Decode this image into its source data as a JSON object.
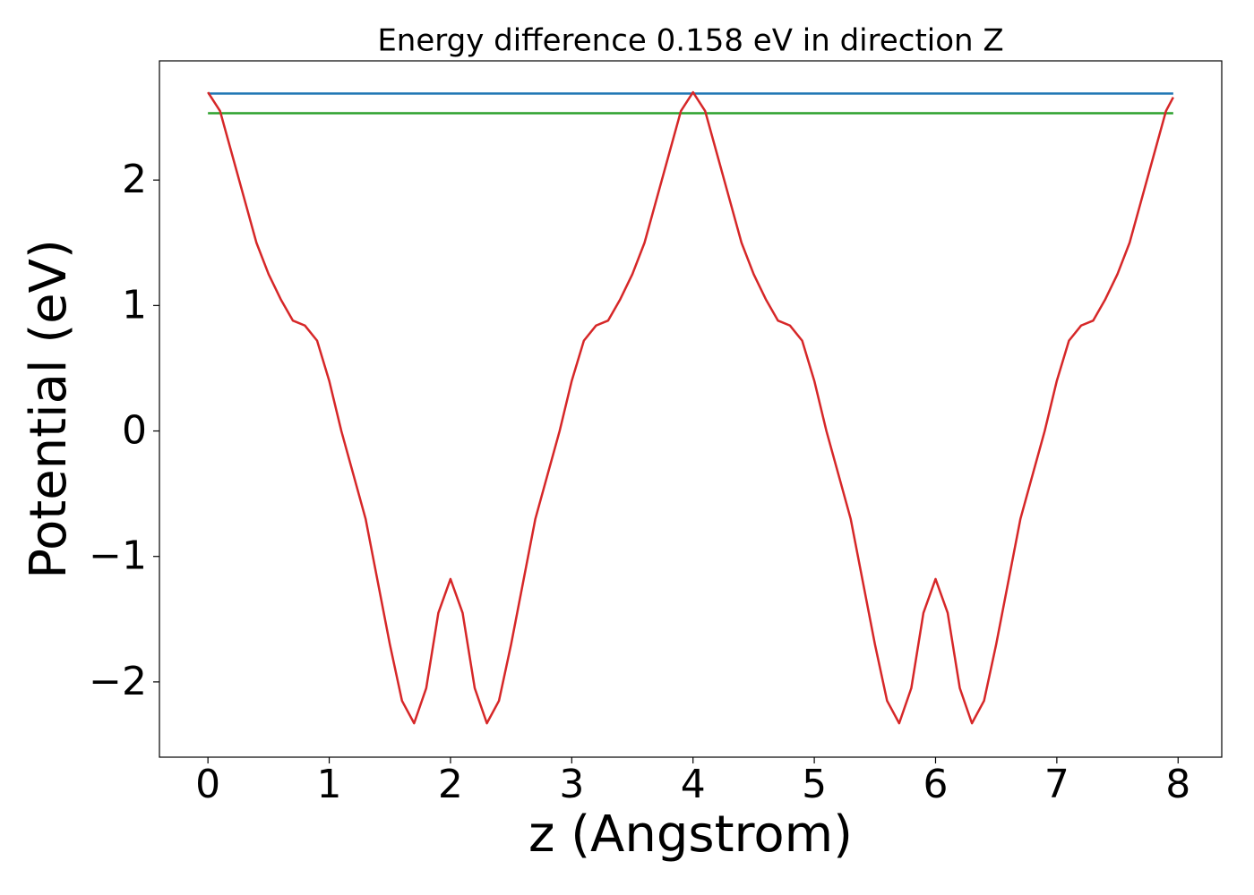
{
  "chart_data": {
    "type": "line",
    "title": "Energy difference 0.158 eV in direction Z",
    "xlabel": "z (Angstrom)",
    "ylabel": "Potential (eV)",
    "xlim": [
      -0.4,
      8.36
    ],
    "ylim": [
      -2.6,
      2.95
    ],
    "xticks": [
      0,
      1,
      2,
      3,
      4,
      5,
      6,
      7,
      8
    ],
    "yticks": [
      {
        "value": -2,
        "label": "−2"
      },
      {
        "value": -1,
        "label": "−1"
      },
      0,
      1,
      2
    ],
    "series": [
      {
        "color": "#1f77b4",
        "x": [
          0,
          7.96
        ],
        "values": [
          2.69,
          2.69
        ]
      },
      {
        "color": "#2ca02c",
        "x": [
          0,
          7.96
        ],
        "values": [
          2.533,
          2.533
        ]
      },
      {
        "color": "#d62728",
        "x": [
          0,
          0.1,
          0.2,
          0.3,
          0.4,
          0.5,
          0.6,
          0.7,
          0.8,
          0.9,
          1.0,
          1.1,
          1.2,
          1.3,
          1.4,
          1.5,
          1.6,
          1.7,
          1.8,
          1.9,
          2.0,
          2.1,
          2.2,
          2.3,
          2.4,
          2.5,
          2.6,
          2.7,
          2.8,
          2.9,
          3.0,
          3.1,
          3.2,
          3.3,
          3.4,
          3.5,
          3.6,
          3.7,
          3.8,
          3.9,
          4.0,
          4.1,
          4.2,
          4.3,
          4.4,
          4.5,
          4.6,
          4.7,
          4.8,
          4.9,
          5.0,
          5.1,
          5.2,
          5.3,
          5.4,
          5.5,
          5.6,
          5.7,
          5.8,
          5.9,
          6.0,
          6.1,
          6.2,
          6.3,
          6.4,
          6.5,
          6.6,
          6.7,
          6.8,
          6.9,
          7.0,
          7.1,
          7.2,
          7.3,
          7.4,
          7.5,
          7.6,
          7.7,
          7.8,
          7.9,
          7.96
        ],
        "values": [
          2.7,
          2.55,
          2.2,
          1.85,
          1.5,
          1.25,
          1.05,
          0.88,
          0.84,
          0.72,
          0.4,
          0.0,
          -0.35,
          -0.7,
          -1.2,
          -1.7,
          -2.15,
          -2.33,
          -2.05,
          -1.45,
          -1.18,
          -1.45,
          -2.05,
          -2.33,
          -2.15,
          -1.7,
          -1.2,
          -0.7,
          -0.35,
          0.0,
          0.4,
          0.72,
          0.84,
          0.88,
          1.05,
          1.25,
          1.5,
          1.85,
          2.2,
          2.55,
          2.7,
          2.55,
          2.2,
          1.85,
          1.5,
          1.25,
          1.05,
          0.88,
          0.84,
          0.72,
          0.4,
          0.0,
          -0.35,
          -0.7,
          -1.2,
          -1.7,
          -2.15,
          -2.33,
          -2.05,
          -1.45,
          -1.18,
          -1.45,
          -2.05,
          -2.33,
          -2.15,
          -1.7,
          -1.2,
          -0.7,
          -0.35,
          0.0,
          0.4,
          0.72,
          0.84,
          0.88,
          1.05,
          1.25,
          1.5,
          1.85,
          2.2,
          2.55,
          2.66
        ]
      }
    ]
  }
}
